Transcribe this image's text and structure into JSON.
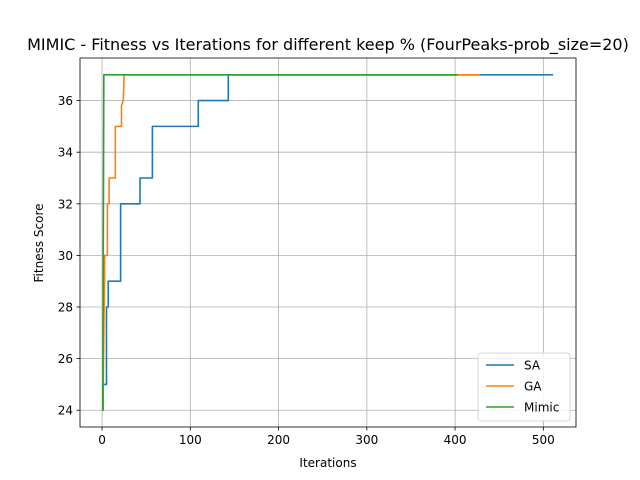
{
  "chart_data": {
    "type": "line",
    "title": "MIMIC - Fitness vs Iterations for different keep % (FourPeaks-prob_size=20)",
    "xlabel": "Iterations",
    "ylabel": "Fitness Score",
    "xlim": [
      -25,
      537
    ],
    "ylim": [
      23.35,
      37.65
    ],
    "xticks": [
      0,
      100,
      200,
      300,
      400,
      500
    ],
    "yticks": [
      24,
      26,
      28,
      30,
      32,
      34,
      36
    ],
    "grid": true,
    "legend_position": "lower-right",
    "series": [
      {
        "name": "SA",
        "color": "#1f77b4",
        "points": [
          [
            0,
            24
          ],
          [
            1,
            24
          ],
          [
            1,
            25
          ],
          [
            5,
            25
          ],
          [
            5,
            28
          ],
          [
            7,
            28
          ],
          [
            7,
            29
          ],
          [
            21,
            29
          ],
          [
            21,
            32
          ],
          [
            43,
            32
          ],
          [
            43,
            33
          ],
          [
            57,
            33
          ],
          [
            57,
            35
          ],
          [
            109,
            35
          ],
          [
            109,
            36
          ],
          [
            143,
            36
          ],
          [
            143,
            37
          ],
          [
            511,
            37
          ]
        ]
      },
      {
        "name": "GA",
        "color": "#ff7f0e",
        "points": [
          [
            0,
            24
          ],
          [
            1,
            24
          ],
          [
            3,
            30
          ],
          [
            6,
            30
          ],
          [
            6,
            32
          ],
          [
            8,
            32
          ],
          [
            8,
            33
          ],
          [
            15,
            33
          ],
          [
            15,
            35
          ],
          [
            22,
            35
          ],
          [
            22,
            35.8
          ],
          [
            24,
            36
          ],
          [
            25,
            37
          ],
          [
            428,
            37
          ]
        ]
      },
      {
        "name": "Mimic",
        "color": "#2ca02c",
        "points": [
          [
            0,
            24
          ],
          [
            1,
            24
          ],
          [
            1,
            26
          ],
          [
            2,
            37
          ],
          [
            403,
            37
          ]
        ]
      }
    ]
  }
}
